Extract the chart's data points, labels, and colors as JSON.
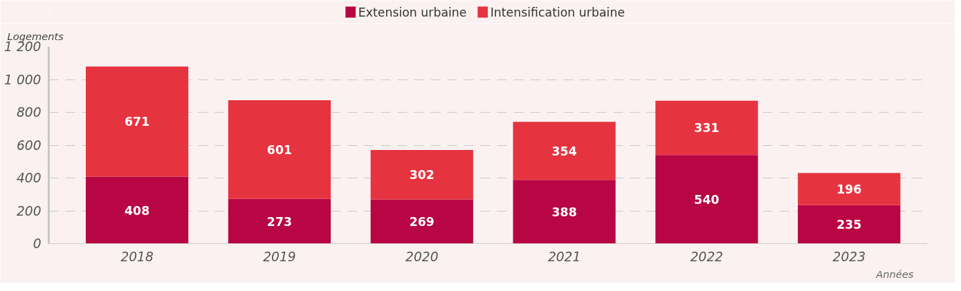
{
  "chart_data": {
    "type": "bar",
    "stacked": true,
    "xlabel": "Années",
    "ylabel": "Logements",
    "categories": [
      "2018",
      "2019",
      "2020",
      "2021",
      "2022",
      "2023"
    ],
    "series": [
      {
        "name": "Extension urbaine",
        "color": "#b80644",
        "values": [
          408,
          273,
          269,
          388,
          540,
          235
        ]
      },
      {
        "name": "Intensification urbaine",
        "color": "#e63340",
        "values": [
          671,
          601,
          302,
          354,
          331,
          196
        ]
      }
    ],
    "ylim": [
      0,
      1200
    ],
    "yticks": [
      0,
      200,
      400,
      600,
      800,
      {
        "value": 1000,
        "label": "1 000"
      },
      {
        "value": 1200,
        "label": "1 200"
      }
    ],
    "grid": "y",
    "legend": "top",
    "data_labels": true
  }
}
